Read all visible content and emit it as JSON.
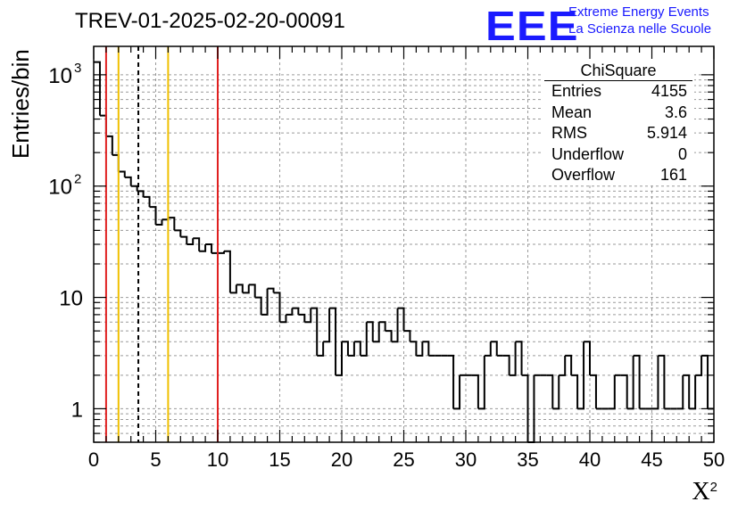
{
  "title": "TREV-01-2025-02-20-00091",
  "logo": {
    "mark": "EEE",
    "line1": "Extreme Energy Events",
    "line2": "La Scienza nelle Scuole",
    "color": "#1a1aff"
  },
  "stats": {
    "title": "ChiSquare",
    "rows": [
      {
        "label": "Entries",
        "value": "4155"
      },
      {
        "label": "Mean",
        "value": "3.6"
      },
      {
        "label": "RMS",
        "value": "5.914"
      },
      {
        "label": "Underflow",
        "value": "0"
      },
      {
        "label": "Overflow",
        "value": "161"
      }
    ]
  },
  "chart_data": {
    "type": "histogram",
    "ylabel": "Entries/bin",
    "xlabel": "X",
    "xlabel_sup": "2",
    "xlim": [
      0,
      50
    ],
    "ylim": [
      0.5,
      1800
    ],
    "ylog": true,
    "grid": true,
    "bin_width": 0.5,
    "xticks": [
      0,
      5,
      10,
      15,
      20,
      25,
      30,
      35,
      40,
      45,
      50
    ],
    "yticks": [
      {
        "value": 1,
        "label": "1"
      },
      {
        "value": 10,
        "label": "10"
      },
      {
        "value": 100,
        "label": "10",
        "sup": "2"
      },
      {
        "value": 1000,
        "label": "10",
        "sup": "3"
      }
    ],
    "values": [
      1300,
      430,
      280,
      190,
      135,
      120,
      100,
      90,
      80,
      65,
      45,
      50,
      52,
      40,
      35,
      30,
      34,
      26,
      30,
      25,
      25,
      26,
      11,
      13,
      11,
      13,
      10,
      7,
      12,
      11,
      6,
      7,
      8,
      7,
      6,
      8,
      3,
      4,
      8,
      2,
      4,
      3,
      4,
      3,
      6,
      4,
      6,
      5,
      4,
      8,
      5,
      4,
      3,
      4,
      3,
      3,
      3,
      3,
      1,
      2,
      2,
      2,
      1,
      3,
      4,
      3,
      3,
      2,
      4,
      2,
      0,
      2,
      2,
      2,
      1,
      2,
      3,
      2,
      1,
      4,
      2,
      1,
      1,
      1,
      2,
      2,
      1,
      3,
      1,
      1,
      1,
      3,
      1,
      1,
      1,
      2,
      1,
      2,
      3,
      1
    ],
    "vlines": [
      {
        "x": 1,
        "color": "#e02020",
        "style": "solid"
      },
      {
        "x": 2,
        "color": "#f0c000",
        "style": "solid"
      },
      {
        "x": 3.6,
        "color": "#000000",
        "style": "dashed"
      },
      {
        "x": 6,
        "color": "#f0c000",
        "style": "solid"
      },
      {
        "x": 10,
        "color": "#e02020",
        "style": "solid"
      }
    ]
  }
}
